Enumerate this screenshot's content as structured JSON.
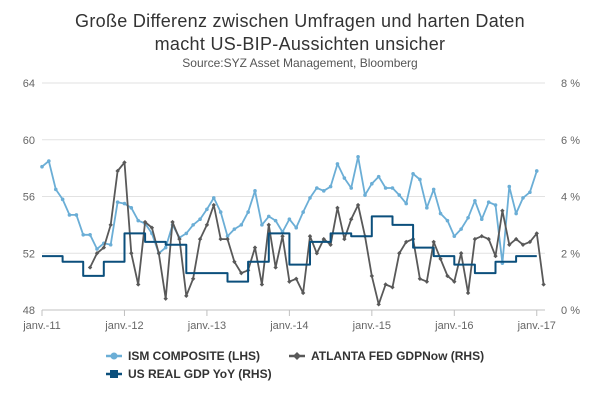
{
  "chart_data": {
    "type": "line",
    "title_line1": "Große Differenz zwischen Umfragen und harten Daten",
    "title_line2": "macht US-BIP-Aussichten unsicher",
    "subtitle": "Source:SYZ Asset Management, Bloomberg",
    "x_labels": [
      "janv.-11",
      "janv.-12",
      "janv.-13",
      "janv.-14",
      "janv.-15",
      "janv.-16",
      "janv.-17"
    ],
    "x_range": [
      2011.0,
      2017.1
    ],
    "y_left": {
      "range": [
        48,
        64
      ],
      "ticks": [
        "48",
        "52",
        "56",
        "60",
        "64"
      ]
    },
    "y_right": {
      "range": [
        0,
        8
      ],
      "ticks": [
        "0 %",
        "2 %",
        "4 %",
        "6 %",
        "8 %"
      ]
    },
    "grid": true,
    "legend_position": "bottom",
    "series": [
      {
        "name": "ISM COMPOSITE (LHS)",
        "axis": "left",
        "color": "#6baed6",
        "marker": "circle",
        "x": [
          2011.0,
          2011.083,
          2011.167,
          2011.25,
          2011.333,
          2011.417,
          2011.5,
          2011.583,
          2011.667,
          2011.75,
          2011.833,
          2011.917,
          2012.0,
          2012.083,
          2012.167,
          2012.25,
          2012.333,
          2012.417,
          2012.5,
          2012.583,
          2012.667,
          2012.75,
          2012.833,
          2012.917,
          2013.0,
          2013.083,
          2013.167,
          2013.25,
          2013.333,
          2013.417,
          2013.5,
          2013.583,
          2013.667,
          2013.75,
          2013.833,
          2013.917,
          2014.0,
          2014.083,
          2014.167,
          2014.25,
          2014.333,
          2014.417,
          2014.5,
          2014.583,
          2014.667,
          2014.75,
          2014.833,
          2014.917,
          2015.0,
          2015.083,
          2015.167,
          2015.25,
          2015.333,
          2015.417,
          2015.5,
          2015.583,
          2015.667,
          2015.75,
          2015.833,
          2015.917,
          2016.0,
          2016.083,
          2016.167,
          2016.25,
          2016.333,
          2016.417,
          2016.5,
          2016.583,
          2016.667,
          2016.75,
          2016.833,
          2016.917,
          2017.0
        ],
        "y": [
          58.1,
          58.5,
          56.5,
          55.8,
          54.7,
          54.7,
          53.3,
          53.3,
          52.3,
          52.7,
          52.6,
          55.6,
          55.5,
          55.2,
          54.3,
          54.1,
          53.4,
          52.0,
          52.4,
          54.0,
          53.1,
          53.4,
          54.0,
          54.4,
          55.1,
          55.9,
          54.9,
          53.2,
          53.7,
          54.0,
          54.9,
          56.4,
          54.0,
          54.6,
          54.3,
          53.5,
          54.4,
          53.8,
          54.9,
          55.9,
          56.6,
          56.4,
          56.7,
          58.3,
          57.3,
          56.6,
          58.8,
          56.1,
          56.9,
          57.4,
          56.6,
          56.6,
          56.1,
          55.5,
          57.6,
          57.2,
          55.2,
          56.5,
          54.8,
          54.3,
          53.2,
          53.7,
          54.5,
          55.7,
          54.4,
          55.6,
          55.4,
          51.3,
          56.7,
          54.8,
          55.9,
          56.3,
          57.8
        ]
      },
      {
        "name": "ATLANTA FED GDPNow (RHS)",
        "axis": "right",
        "color": "#595959",
        "marker": "diamond",
        "x": [
          2011.583,
          2011.667,
          2011.75,
          2011.833,
          2011.917,
          2012.0,
          2012.083,
          2012.167,
          2012.25,
          2012.333,
          2012.417,
          2012.5,
          2012.583,
          2012.667,
          2012.75,
          2012.833,
          2012.917,
          2013.0,
          2013.083,
          2013.167,
          2013.25,
          2013.333,
          2013.417,
          2013.5,
          2013.583,
          2013.667,
          2013.75,
          2013.833,
          2013.917,
          2014.0,
          2014.083,
          2014.167,
          2014.25,
          2014.333,
          2014.417,
          2014.5,
          2014.583,
          2014.667,
          2014.75,
          2014.833,
          2014.917,
          2015.0,
          2015.083,
          2015.167,
          2015.25,
          2015.333,
          2015.417,
          2015.5,
          2015.583,
          2015.667,
          2015.75,
          2015.833,
          2015.917,
          2016.0,
          2016.083,
          2016.167,
          2016.25,
          2016.333,
          2016.417,
          2016.5,
          2016.583,
          2016.667,
          2016.75,
          2016.833,
          2016.917,
          2017.0,
          2017.083
        ],
        "y": [
          1.5,
          2.0,
          2.2,
          3.0,
          4.9,
          5.2,
          2.0,
          0.9,
          3.1,
          2.9,
          2.0,
          0.4,
          3.1,
          2.5,
          0.5,
          1.1,
          2.5,
          3.0,
          3.7,
          2.5,
          2.5,
          1.7,
          1.3,
          1.4,
          2.2,
          0.9,
          3.0,
          1.5,
          2.6,
          1.0,
          1.1,
          0.6,
          2.6,
          2.0,
          2.5,
          2.3,
          3.6,
          2.5,
          3.2,
          3.7,
          2.6,
          1.2,
          0.2,
          0.9,
          0.8,
          2.0,
          2.4,
          2.5,
          1.1,
          1.0,
          2.4,
          1.8,
          1.2,
          1.0,
          2.0,
          0.6,
          2.5,
          2.6,
          2.5,
          1.9,
          3.5,
          2.3,
          2.5,
          2.3,
          2.4,
          2.7,
          0.9
        ]
      },
      {
        "name": "US REAL GDP YoY (RHS)",
        "axis": "right",
        "color": "#0b4f7c",
        "marker": "none",
        "step": true,
        "x": [
          2011.0,
          2011.25,
          2011.5,
          2011.75,
          2012.0,
          2012.25,
          2012.5,
          2012.75,
          2013.0,
          2013.25,
          2013.5,
          2013.75,
          2014.0,
          2014.25,
          2014.5,
          2014.75,
          2015.0,
          2015.25,
          2015.5,
          2015.75,
          2016.0,
          2016.25,
          2016.5,
          2016.75
        ],
        "y": [
          1.9,
          1.7,
          1.2,
          1.7,
          2.7,
          2.4,
          2.3,
          1.3,
          1.3,
          1.0,
          1.7,
          2.7,
          1.6,
          2.4,
          2.7,
          2.6,
          3.3,
          3.0,
          2.2,
          1.9,
          1.6,
          1.3,
          1.7,
          1.9
        ]
      }
    ]
  }
}
